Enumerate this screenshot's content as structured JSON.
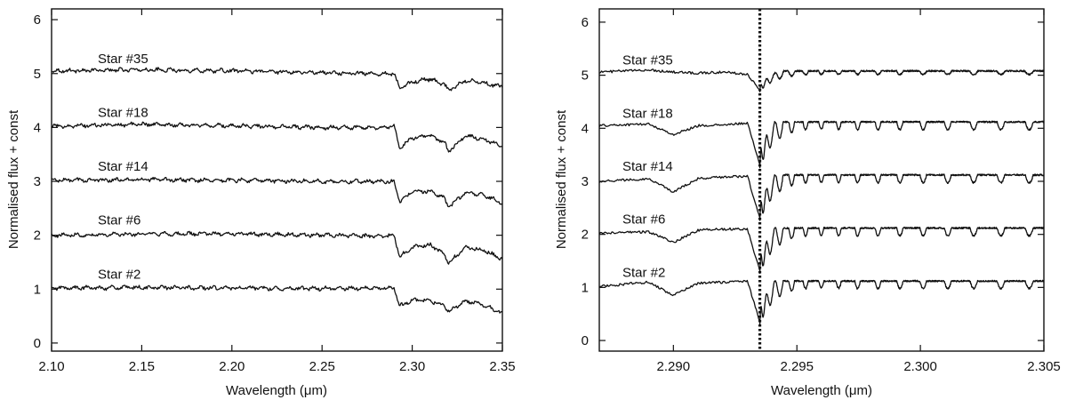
{
  "chart_data": [
    {
      "type": "line",
      "xlabel": "Wavelength (μm)",
      "ylabel": "Normalised flux + const",
      "xlim": [
        2.1,
        2.35
      ],
      "ylim": [
        -0.15,
        6.2
      ],
      "xticks": [
        "2.10",
        "2.15",
        "2.20",
        "2.25",
        "2.30",
        "2.35"
      ],
      "xtick_values": [
        2.1,
        2.15,
        2.2,
        2.25,
        2.3,
        2.35
      ],
      "yticks": [
        "0",
        "1",
        "2",
        "3",
        "4",
        "5",
        "6"
      ],
      "ytick_values": [
        0,
        1,
        2,
        3,
        4,
        5,
        6
      ],
      "grid": false,
      "series": [
        {
          "name": "Star #35",
          "offset": 5,
          "x": [
            2.1,
            2.15,
            2.2,
            2.25,
            2.28,
            2.29,
            2.293,
            2.3,
            2.31,
            2.318,
            2.32,
            2.33,
            2.34,
            2.35
          ],
          "y": [
            5.05,
            5.07,
            5.05,
            5.02,
            5.0,
            5.0,
            4.72,
            4.85,
            4.9,
            4.8,
            4.68,
            4.88,
            4.82,
            4.75
          ]
        },
        {
          "name": "Star #18",
          "offset": 4,
          "x": [
            2.1,
            2.15,
            2.2,
            2.25,
            2.28,
            2.29,
            2.293,
            2.3,
            2.31,
            2.318,
            2.32,
            2.33,
            2.34,
            2.35
          ],
          "y": [
            4.02,
            4.06,
            4.03,
            4.0,
            4.0,
            4.02,
            3.62,
            3.8,
            3.85,
            3.72,
            3.55,
            3.85,
            3.78,
            3.65
          ]
        },
        {
          "name": "Star #14",
          "offset": 3,
          "x": [
            2.1,
            2.15,
            2.2,
            2.25,
            2.28,
            2.29,
            2.293,
            2.3,
            2.31,
            2.318,
            2.32,
            2.33,
            2.34,
            2.35
          ],
          "y": [
            3.02,
            3.03,
            3.02,
            3.0,
            3.0,
            3.0,
            2.62,
            2.8,
            2.82,
            2.68,
            2.52,
            2.8,
            2.74,
            2.6
          ]
        },
        {
          "name": "Star #6",
          "offset": 2,
          "x": [
            2.1,
            2.15,
            2.2,
            2.25,
            2.28,
            2.29,
            2.293,
            2.3,
            2.31,
            2.318,
            2.32,
            2.33,
            2.34,
            2.35
          ],
          "y": [
            2.0,
            2.02,
            2.03,
            2.0,
            1.98,
            2.0,
            1.6,
            1.78,
            1.82,
            1.65,
            1.48,
            1.78,
            1.72,
            1.55
          ]
        },
        {
          "name": "Star #2",
          "offset": 1,
          "x": [
            2.1,
            2.15,
            2.2,
            2.25,
            2.28,
            2.29,
            2.293,
            2.3,
            2.31,
            2.318,
            2.32,
            2.33,
            2.34,
            2.35
          ],
          "y": [
            1.02,
            1.03,
            1.02,
            1.01,
            1.02,
            1.02,
            0.68,
            0.8,
            0.78,
            0.7,
            0.58,
            0.78,
            0.7,
            0.55
          ]
        }
      ]
    },
    {
      "type": "line",
      "xlabel": "Wavelength (μm)",
      "ylabel": "Normalised flux + const",
      "xlim": [
        2.287,
        2.305
      ],
      "ylim": [
        -0.2,
        6.25
      ],
      "xticks": [
        "2.290",
        "2.295",
        "2.300",
        "2.305"
      ],
      "xtick_values": [
        2.29,
        2.295,
        2.3,
        2.305
      ],
      "yticks": [
        "0",
        "1",
        "2",
        "3",
        "4",
        "5",
        "6"
      ],
      "ytick_values": [
        0,
        1,
        2,
        3,
        4,
        5,
        6
      ],
      "grid": false,
      "vertical_marker": {
        "x": 2.2935,
        "style": "dotted"
      },
      "band_head": 2.2935,
      "series": [
        {
          "name": "Star #35",
          "offset": 5,
          "continuum": 5.06,
          "drop": 0.35,
          "depth": 0.3,
          "x_pre": [
            2.287,
            2.289,
            2.29,
            2.291,
            2.292,
            2.293,
            2.2935
          ],
          "y_pre": [
            5.06,
            5.1,
            5.06,
            5.04,
            5.06,
            5.02,
            4.72
          ]
        },
        {
          "name": "Star #18",
          "offset": 4,
          "continuum": 4.1,
          "drop": 0.8,
          "depth": 0.85,
          "x_pre": [
            2.287,
            2.289,
            2.29,
            2.291,
            2.292,
            2.293,
            2.2935
          ],
          "y_pre": [
            4.05,
            4.08,
            3.88,
            4.05,
            4.06,
            4.1,
            3.3
          ]
        },
        {
          "name": "Star #14",
          "offset": 3,
          "continuum": 3.1,
          "drop": 0.8,
          "depth": 0.85,
          "x_pre": [
            2.287,
            2.289,
            2.29,
            2.291,
            2.292,
            2.293,
            2.2935
          ],
          "y_pre": [
            3.0,
            3.05,
            2.8,
            3.05,
            3.08,
            3.1,
            2.3
          ]
        },
        {
          "name": "Star #6",
          "offset": 2,
          "continuum": 2.1,
          "drop": 0.8,
          "depth": 0.85,
          "x_pre": [
            2.287,
            2.289,
            2.29,
            2.291,
            2.292,
            2.293,
            2.2935
          ],
          "y_pre": [
            2.02,
            2.05,
            1.85,
            2.08,
            2.1,
            2.1,
            1.3
          ]
        },
        {
          "name": "Star #2",
          "offset": 1,
          "continuum": 1.1,
          "drop": 0.75,
          "depth": 0.8,
          "x_pre": [
            2.287,
            2.289,
            2.29,
            2.291,
            2.292,
            2.293,
            2.2935
          ],
          "y_pre": [
            1.02,
            1.1,
            0.85,
            1.08,
            1.1,
            1.12,
            0.35
          ]
        }
      ]
    }
  ]
}
